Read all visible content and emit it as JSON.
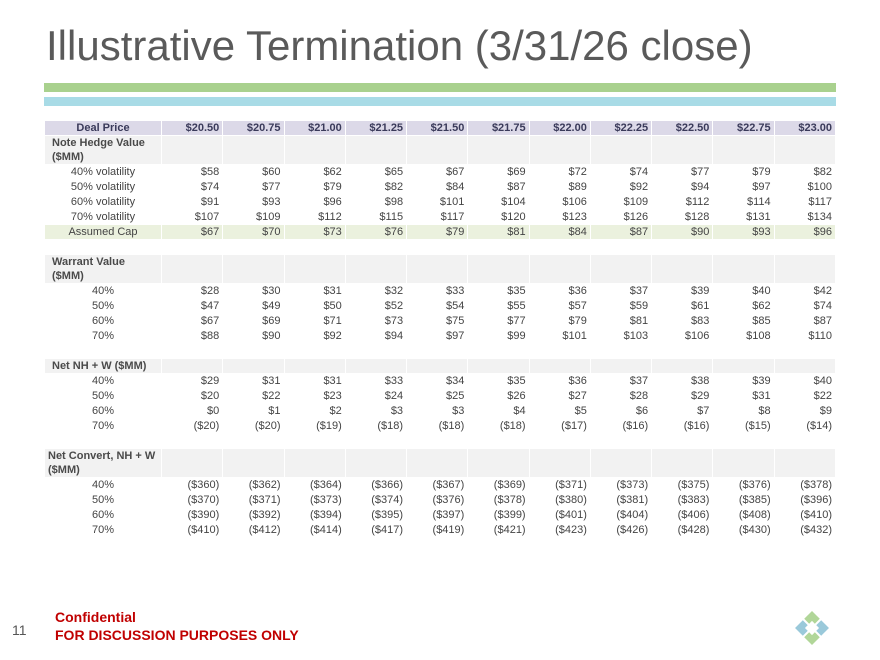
{
  "title": "Illustrative Termination (3/31/26 close)",
  "colors": {
    "accent_green": "#a9d18e",
    "accent_blue": "#a8dbe6",
    "header_bg": "#dcd9e8",
    "confidential_red": "#c00000"
  },
  "header": {
    "label": "Deal Price",
    "prices": [
      "$20.50",
      "$20.75",
      "$21.00",
      "$21.25",
      "$21.50",
      "$21.75",
      "$22.00",
      "$22.25",
      "$22.50",
      "$22.75",
      "$23.00"
    ]
  },
  "note_hedge": {
    "title": "Note Hedge Value ($MM)",
    "rows": [
      {
        "label": "40% volatility",
        "values": [
          "$58",
          "$60",
          "$62",
          "$65",
          "$67",
          "$69",
          "$72",
          "$74",
          "$77",
          "$79",
          "$82"
        ]
      },
      {
        "label": "50% volatility",
        "values": [
          "$74",
          "$77",
          "$79",
          "$82",
          "$84",
          "$87",
          "$89",
          "$92",
          "$94",
          "$97",
          "$100"
        ]
      },
      {
        "label": "60% volatility",
        "values": [
          "$91",
          "$93",
          "$96",
          "$98",
          "$101",
          "$104",
          "$106",
          "$109",
          "$112",
          "$114",
          "$117"
        ]
      },
      {
        "label": "70% volatility",
        "values": [
          "$107",
          "$109",
          "$112",
          "$115",
          "$117",
          "$120",
          "$123",
          "$126",
          "$128",
          "$131",
          "$134"
        ]
      }
    ],
    "cap": {
      "label": "Assumed Cap",
      "values": [
        "$67",
        "$70",
        "$73",
        "$76",
        "$79",
        "$81",
        "$84",
        "$87",
        "$90",
        "$93",
        "$96"
      ]
    }
  },
  "warrant": {
    "title": "Warrant Value ($MM)",
    "rows": [
      {
        "label": "40%",
        "values": [
          "$28",
          "$30",
          "$31",
          "$32",
          "$33",
          "$35",
          "$36",
          "$37",
          "$39",
          "$40",
          "$42"
        ]
      },
      {
        "label": "50%",
        "values": [
          "$47",
          "$49",
          "$50",
          "$52",
          "$54",
          "$55",
          "$57",
          "$59",
          "$61",
          "$62",
          "$74"
        ]
      },
      {
        "label": "60%",
        "values": [
          "$67",
          "$69",
          "$71",
          "$73",
          "$75",
          "$77",
          "$79",
          "$81",
          "$83",
          "$85",
          "$87"
        ]
      },
      {
        "label": "70%",
        "values": [
          "$88",
          "$90",
          "$92",
          "$94",
          "$97",
          "$99",
          "$101",
          "$103",
          "$106",
          "$108",
          "$110"
        ]
      }
    ]
  },
  "net_nh_w": {
    "title": "Net NH + W ($MM)",
    "rows": [
      {
        "label": "40%",
        "values": [
          "$29",
          "$31",
          "$31",
          "$33",
          "$34",
          "$35",
          "$36",
          "$37",
          "$38",
          "$39",
          "$40"
        ]
      },
      {
        "label": "50%",
        "values": [
          "$20",
          "$22",
          "$23",
          "$24",
          "$25",
          "$26",
          "$27",
          "$28",
          "$29",
          "$31",
          "$22"
        ]
      },
      {
        "label": "60%",
        "values": [
          "$0",
          "$1",
          "$2",
          "$3",
          "$3",
          "$4",
          "$5",
          "$6",
          "$7",
          "$8",
          "$9"
        ]
      },
      {
        "label": "70%",
        "values": [
          "($20)",
          "($20)",
          "($19)",
          "($18)",
          "($18)",
          "($18)",
          "($17)",
          "($16)",
          "($16)",
          "($15)",
          "($14)"
        ]
      }
    ]
  },
  "net_convert": {
    "title": "Net Convert, NH + W ($MM)",
    "rows": [
      {
        "label": "40%",
        "values": [
          "($360)",
          "($362)",
          "($364)",
          "($366)",
          "($367)",
          "($369)",
          "($371)",
          "($373)",
          "($375)",
          "($376)",
          "($378)"
        ]
      },
      {
        "label": "50%",
        "values": [
          "($370)",
          "($371)",
          "($373)",
          "($374)",
          "($376)",
          "($378)",
          "($380)",
          "($381)",
          "($383)",
          "($385)",
          "($396)"
        ]
      },
      {
        "label": "60%",
        "values": [
          "($390)",
          "($392)",
          "($394)",
          "($395)",
          "($397)",
          "($399)",
          "($401)",
          "($404)",
          "($406)",
          "($408)",
          "($410)"
        ]
      },
      {
        "label": "70%",
        "values": [
          "($410)",
          "($412)",
          "($414)",
          "($417)",
          "($419)",
          "($421)",
          "($423)",
          "($426)",
          "($428)",
          "($430)",
          "($432)"
        ]
      }
    ]
  },
  "footer": {
    "page_number": "11",
    "confidential": "Confidential",
    "discussion": "FOR DISCUSSION PURPOSES ONLY"
  }
}
